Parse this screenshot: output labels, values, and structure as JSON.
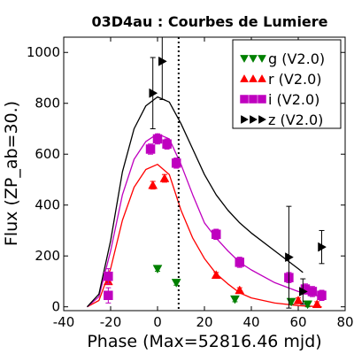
{
  "chart_data": {
    "type": "scatter",
    "title": "03D4au : Courbes de Lumiere",
    "xlabel": "Phase (Max=52816.46 mjd)",
    "ylabel": "Flux (ZP_ab=30.)",
    "xlim": [
      -40,
      80
    ],
    "ylim": [
      -15,
      1060
    ],
    "xticks": [
      -40,
      -20,
      0,
      20,
      40,
      60,
      80
    ],
    "yticks": [
      0,
      200,
      400,
      600,
      800,
      1000
    ],
    "xtick_labels": [
      "-40",
      "-20",
      "0",
      "20",
      "40",
      "60",
      "80"
    ],
    "ytick_labels": [
      "0",
      "200",
      "400",
      "600",
      "800",
      "1000"
    ],
    "grid": false,
    "legend_position": "top-right",
    "max_phase_line": 9,
    "series": [
      {
        "name": "g (V2.0)",
        "color": "#008000",
        "marker": "triangle-down",
        "points": [
          {
            "x": 0,
            "y": 150,
            "err": 10
          },
          {
            "x": 8,
            "y": 95,
            "err": 10
          },
          {
            "x": 33,
            "y": 30,
            "err": 10
          },
          {
            "x": 57,
            "y": 20,
            "err": 10
          },
          {
            "x": 64,
            "y": 10,
            "err": 10
          }
        ],
        "model": []
      },
      {
        "name": "r (V2.0)",
        "color": "#ff0000",
        "marker": "triangle-up",
        "points": [
          {
            "x": -21,
            "y": 100,
            "err": 10
          },
          {
            "x": -2,
            "y": 478,
            "err": 15
          },
          {
            "x": 3,
            "y": 505,
            "err": 15
          },
          {
            "x": 25,
            "y": 125,
            "err": 10
          },
          {
            "x": 35,
            "y": 65,
            "err": 10
          },
          {
            "x": 60,
            "y": 25,
            "err": 10
          },
          {
            "x": 68,
            "y": 10,
            "err": 10
          }
        ],
        "model": [
          [
            -30,
            0
          ],
          [
            -25,
            25
          ],
          [
            -20,
            150
          ],
          [
            -15,
            340
          ],
          [
            -10,
            470
          ],
          [
            -5,
            540
          ],
          [
            0,
            560
          ],
          [
            5,
            520
          ],
          [
            10,
            380
          ],
          [
            15,
            270
          ],
          [
            20,
            190
          ],
          [
            25,
            130
          ],
          [
            30,
            90
          ],
          [
            35,
            55
          ],
          [
            40,
            35
          ],
          [
            50,
            15
          ],
          [
            60,
            5
          ],
          [
            70,
            0
          ]
        ]
      },
      {
        "name": "i (V2.0)",
        "color": "#bf00bf",
        "marker": "square",
        "points": [
          {
            "x": -21,
            "y": 120,
            "err": 30
          },
          {
            "x": -21,
            "y": 45,
            "err": 30
          },
          {
            "x": -3,
            "y": 620,
            "err": 20
          },
          {
            "x": 0,
            "y": 660,
            "err": 20
          },
          {
            "x": 4,
            "y": 640,
            "err": 20
          },
          {
            "x": 8,
            "y": 565,
            "err": 20
          },
          {
            "x": 25,
            "y": 285,
            "err": 20
          },
          {
            "x": 35,
            "y": 175,
            "err": 20
          },
          {
            "x": 56,
            "y": 115,
            "err": 20
          },
          {
            "x": 63,
            "y": 70,
            "err": 20
          },
          {
            "x": 66,
            "y": 60,
            "err": 20
          },
          {
            "x": 70,
            "y": 45,
            "err": 20
          }
        ],
        "model": [
          [
            -30,
            0
          ],
          [
            -25,
            40
          ],
          [
            -20,
            220
          ],
          [
            -15,
            440
          ],
          [
            -10,
            580
          ],
          [
            -5,
            650
          ],
          [
            0,
            680
          ],
          [
            5,
            660
          ],
          [
            10,
            560
          ],
          [
            15,
            440
          ],
          [
            20,
            330
          ],
          [
            25,
            270
          ],
          [
            30,
            220
          ],
          [
            35,
            175
          ],
          [
            40,
            145
          ],
          [
            50,
            95
          ],
          [
            60,
            60
          ],
          [
            70,
            40
          ]
        ]
      },
      {
        "name": "z (V2.0)",
        "color": "#000000",
        "marker": "triangle-right",
        "points": [
          {
            "x": -2,
            "y": 840,
            "err": 140
          },
          {
            "x": 2,
            "y": 965,
            "err": 150
          },
          {
            "x": 56,
            "y": 195,
            "err": 200
          },
          {
            "x": 62,
            "y": 60,
            "err": 50
          },
          {
            "x": 70,
            "y": 235,
            "err": 65
          }
        ],
        "model": [
          [
            -30,
            0
          ],
          [
            -25,
            50
          ],
          [
            -20,
            260
          ],
          [
            -15,
            530
          ],
          [
            -10,
            700
          ],
          [
            -5,
            790
          ],
          [
            0,
            825
          ],
          [
            5,
            805
          ],
          [
            10,
            720
          ],
          [
            15,
            620
          ],
          [
            20,
            520
          ],
          [
            25,
            440
          ],
          [
            30,
            380
          ],
          [
            35,
            330
          ],
          [
            40,
            290
          ],
          [
            50,
            220
          ],
          [
            60,
            150
          ],
          [
            62,
            135
          ]
        ]
      }
    ]
  }
}
